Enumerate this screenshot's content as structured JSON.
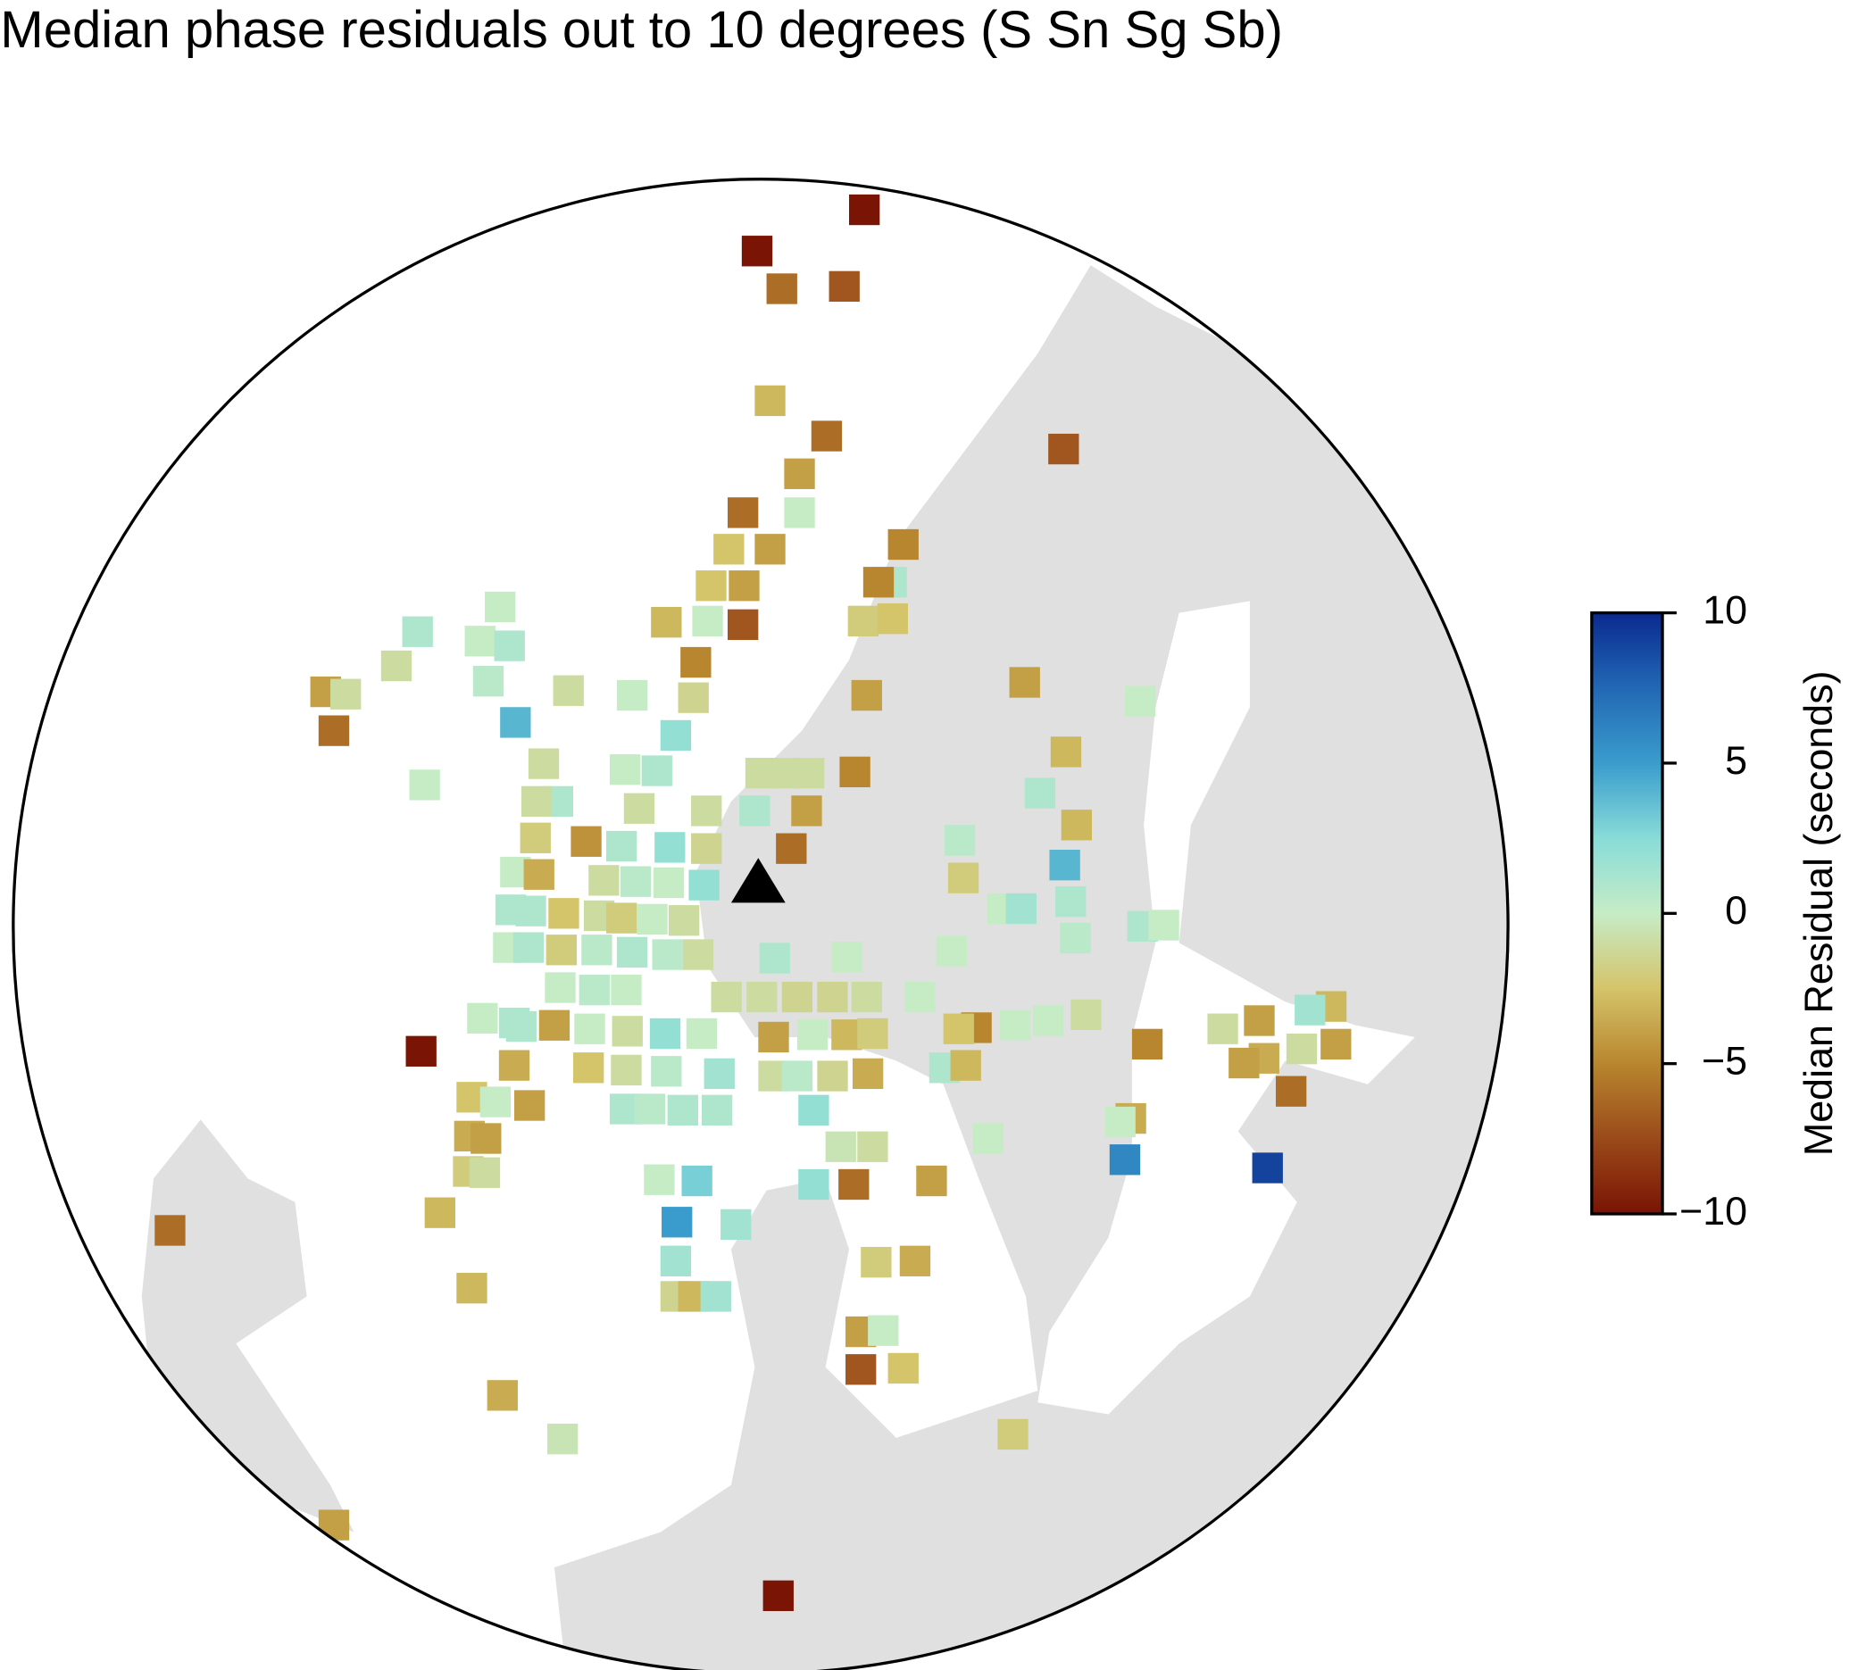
{
  "chart_data": {
    "type": "station-map",
    "title": "Median phase residuals out to 10 degrees (S Sn Sg Sb)",
    "colorbar_label": "Median Residual (seconds)",
    "clim": [
      -10,
      10
    ],
    "cticks": [
      {
        "value": 10,
        "label": "10"
      },
      {
        "value": 5,
        "label": "5"
      },
      {
        "value": 0,
        "label": "0"
      },
      {
        "value": -5,
        "label": "−5"
      },
      {
        "value": -10,
        "label": "−10"
      }
    ],
    "colormap": [
      "#7a1404",
      "#9a4a1a",
      "#b8862e",
      "#d4c46a",
      "#c6ecc6",
      "#88dcd8",
      "#3a9ccc",
      "#2268b4",
      "#0a2a90"
    ],
    "land_color": "#e0e0e0",
    "values": [
      -10,
      -10,
      -6,
      -7,
      -3,
      -6,
      -4,
      -7,
      -6,
      0,
      -2.5,
      -4,
      -5,
      1,
      -5,
      -2.5,
      -4,
      -7,
      0,
      -3,
      -2,
      -2.5,
      0,
      1,
      0,
      1,
      -1,
      -4,
      -1,
      -6,
      0.5,
      -1,
      0,
      -1.5,
      -5,
      -4,
      -4,
      0,
      4,
      2,
      -3,
      0,
      -1,
      0,
      1,
      -1,
      -1,
      -1,
      -5,
      1,
      1,
      -1,
      -1,
      -1,
      1,
      -4,
      -3,
      -2,
      -4.5,
      1,
      2,
      -1.5,
      -6,
      0.5,
      4,
      0,
      -3.5,
      -1,
      0.5,
      0,
      2,
      -2,
      1,
      1,
      1,
      -2.5,
      -1,
      -2,
      0,
      -1,
      0,
      1.5,
      1,
      0,
      0.5,
      0,
      1,
      -2,
      0.5,
      1,
      0.5,
      -1,
      1,
      0,
      0,
      0,
      0.5,
      0,
      -1,
      -1,
      -1.5,
      -1.5,
      -1,
      0,
      0,
      1,
      -4,
      1,
      0,
      -1,
      2,
      0,
      -4,
      0,
      -3,
      -2,
      -5,
      -2.5,
      0,
      0,
      -1,
      -5,
      -1,
      -4,
      -3,
      1.5,
      -4,
      -1,
      -3.5,
      -4,
      -6,
      -10,
      -3.5,
      -2.5,
      -1,
      0.5,
      1.5,
      -1,
      0.5,
      -1.5,
      -3.5,
      1,
      -3,
      -2.5,
      0,
      -4,
      1,
      0.5,
      1,
      1,
      2,
      -3.5,
      0,
      -3.5,
      -4,
      0,
      6,
      9,
      -2,
      -1,
      0,
      3,
      2,
      -6,
      -0.5,
      -1,
      -4,
      -3,
      5,
      1.5,
      -6,
      1.5,
      -2,
      -3.5,
      -3,
      -1.5,
      -3,
      1.5,
      -4,
      0,
      -7,
      -2.5,
      -3.5,
      -2,
      -0.5,
      -4,
      -10
    ]
  }
}
